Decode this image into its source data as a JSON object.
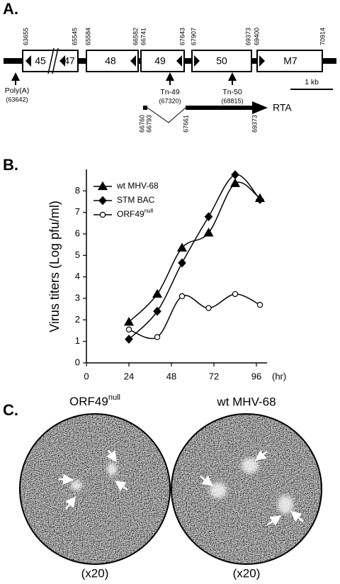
{
  "panel_a": {
    "label": "A.",
    "coordinates": [
      63655,
      65545,
      65584,
      66582,
      66741,
      67643,
      67907,
      69373,
      69400,
      70914
    ],
    "genes": [
      "45",
      "47",
      "48",
      "49",
      "50",
      "M7"
    ],
    "polya": {
      "label": "Poly(A)",
      "position": "(63642)"
    },
    "tn49": {
      "label": "Tn-49",
      "position": "(67320)"
    },
    "tn50": {
      "label": "Tn-50",
      "position": "(68815)"
    },
    "scale_bar": "1 kb",
    "rta": {
      "coordinates": [
        66760,
        66793,
        67661,
        69373
      ],
      "label": "RTA"
    }
  },
  "chart_data": {
    "type": "line",
    "panel_label": "B.",
    "ylabel": "Virus titers (Log pfu/ml)",
    "xlabel": "(hr)",
    "x": [
      24,
      40,
      54,
      69,
      84,
      98
    ],
    "series": [
      {
        "name": "wt MHV-68",
        "color": "#000000",
        "marker": "triangle",
        "values": [
          1.9,
          3.2,
          5.35,
          6.05,
          8.35,
          7.65
        ]
      },
      {
        "name": "STM BAC",
        "color": "#000000",
        "marker": "diamond",
        "values": [
          1.1,
          2.4,
          4.65,
          6.8,
          8.75,
          7.6
        ]
      },
      {
        "name": "ORF49",
        "name_superscript": "null",
        "color": "#000000",
        "marker": "circle",
        "values": [
          1.55,
          1.2,
          3.1,
          2.55,
          3.2,
          2.7
        ]
      }
    ],
    "xlim": [
      0,
      102
    ],
    "xticks": [
      0,
      24,
      48,
      72,
      96
    ],
    "ylim": [
      0,
      9
    ],
    "yticks": [
      0,
      1,
      2,
      3,
      4,
      5,
      6,
      7,
      8
    ],
    "smooth": true,
    "grid": false
  },
  "panel_c": {
    "label": "C.",
    "images": [
      {
        "title": "ORF49",
        "title_superscript": "null",
        "magnification": "(x20)"
      },
      {
        "title": "wt MHV-68",
        "magnification": "(x20)"
      }
    ]
  }
}
